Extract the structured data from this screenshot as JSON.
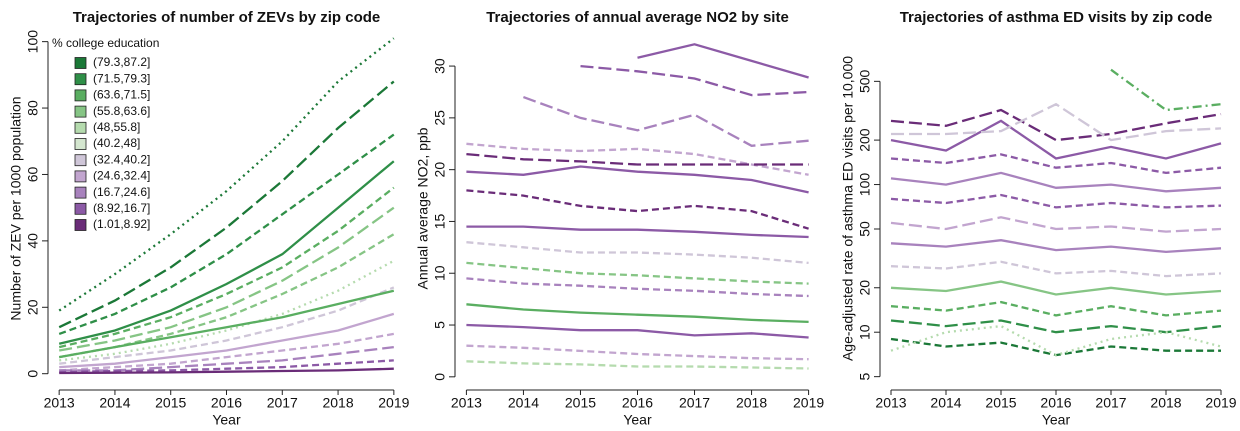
{
  "chart_data": [
    {
      "type": "line",
      "title": "Trajectories of number of ZEVs by zip code",
      "x_label": "Year",
      "y_label": "Number of ZEV per 1000 population",
      "x": [
        2013,
        2014,
        2015,
        2016,
        2017,
        2018,
        2019
      ],
      "xlim": [
        2012.8,
        2019.2
      ],
      "xticks": [
        2013,
        2014,
        2015,
        2016,
        2017,
        2018,
        2019
      ],
      "ylim": [
        -2.5,
        102
      ],
      "yticks": [
        0,
        20,
        40,
        60,
        80,
        100
      ],
      "log_scale": false,
      "legend": {
        "title": "% college education",
        "position": "upper left",
        "items": [
          {
            "label": "(79.3,87.2]",
            "color": "#1b7837"
          },
          {
            "label": "(71.5,79.3]",
            "color": "#2f8f48"
          },
          {
            "label": "(63.6,71.5]",
            "color": "#5aae61"
          },
          {
            "label": "(55.8,63.6]",
            "color": "#86c585"
          },
          {
            "label": "(48,55.8]",
            "color": "#b5dbae"
          },
          {
            "label": "(40.2,48]",
            "color": "#d4e6cf"
          },
          {
            "label": "(32.4,40.2]",
            "color": "#cfc6d8"
          },
          {
            "label": "(24.6,32.4]",
            "color": "#c2a5cf"
          },
          {
            "label": "(16.7,24.6]",
            "color": "#a882bd"
          },
          {
            "label": "(8.92,16.7]",
            "color": "#8c5aa6"
          },
          {
            "label": "(1.01,8.92]",
            "color": "#6a2c78"
          }
        ]
      },
      "series": [
        {
          "color": "#1b7837",
          "dash": "dotted",
          "values": [
            19,
            30,
            42,
            55,
            70,
            88,
            101
          ]
        },
        {
          "color": "#1b7837",
          "dash": "longdash",
          "values": [
            14,
            22,
            32,
            44,
            58,
            74,
            88
          ]
        },
        {
          "color": "#2f8f48",
          "dash": "dashed",
          "values": [
            12,
            18,
            26,
            36,
            48,
            60,
            72
          ]
        },
        {
          "color": "#2f8f48",
          "dash": "solid",
          "values": [
            9,
            13,
            19,
            27,
            36,
            50,
            64
          ]
        },
        {
          "color": "#5aae61",
          "dash": "dashed",
          "values": [
            8,
            12,
            17,
            24,
            32,
            43,
            56
          ]
        },
        {
          "color": "#86c585",
          "dash": "longdash",
          "values": [
            7,
            10,
            14,
            20,
            28,
            38,
            50
          ]
        },
        {
          "color": "#86c585",
          "dash": "dashed",
          "values": [
            5,
            8,
            12,
            17,
            24,
            32,
            42
          ]
        },
        {
          "color": "#b5dbae",
          "dash": "dotted",
          "values": [
            4,
            6,
            9,
            13,
            18,
            25,
            34
          ]
        },
        {
          "color": "#cfc6d8",
          "dash": "dashed",
          "values": [
            3,
            5,
            7,
            10,
            14,
            19,
            26
          ]
        },
        {
          "color": "#5aae61",
          "dash": "solid",
          "values": [
            5,
            8,
            11,
            14,
            17,
            21,
            25
          ]
        },
        {
          "color": "#c2a5cf",
          "dash": "solid",
          "values": [
            2,
            3,
            5,
            7,
            10,
            13,
            18
          ]
        },
        {
          "color": "#c2a5cf",
          "dash": "dashed",
          "values": [
            1,
            2,
            3,
            5,
            7,
            9,
            12
          ]
        },
        {
          "color": "#a882bd",
          "dash": "longdash",
          "values": [
            1,
            1,
            2,
            3,
            4,
            6,
            8
          ]
        },
        {
          "color": "#8c5aa6",
          "dash": "dashed",
          "values": [
            0.5,
            0.8,
            1,
            1.5,
            2,
            3,
            4
          ]
        },
        {
          "color": "#6a2c78",
          "dash": "solid",
          "values": [
            0.2,
            0.3,
            0.4,
            0.6,
            0.8,
            1,
            1.5
          ]
        }
      ]
    },
    {
      "type": "line",
      "title": "Trajectories of annual average NO2 by site",
      "x_label": "Year",
      "y_label": "Annual average NO2, ppb",
      "x": [
        2013,
        2014,
        2015,
        2016,
        2017,
        2018,
        2019
      ],
      "xlim": [
        2012.8,
        2019.2
      ],
      "xticks": [
        2013,
        2014,
        2015,
        2016,
        2017,
        2018,
        2019
      ],
      "ylim": [
        -0.5,
        33
      ],
      "yticks": [
        0,
        5,
        10,
        15,
        20,
        25,
        30
      ],
      "log_scale": false,
      "series": [
        {
          "color": "#8c5aa6",
          "dash": "solid",
          "values": [
            null,
            null,
            null,
            30.8,
            32.1,
            30.5,
            28.9
          ]
        },
        {
          "color": "#8c5aa6",
          "dash": "longdash",
          "values": [
            null,
            null,
            30,
            29.5,
            28.8,
            27.2,
            27.5
          ]
        },
        {
          "color": "#a882bd",
          "dash": "longdash",
          "values": [
            null,
            27,
            25,
            23.8,
            25.3,
            22.3,
            22.8
          ]
        },
        {
          "color": "#c2a5cf",
          "dash": "dashed",
          "values": [
            22.5,
            22,
            21.8,
            22,
            21.5,
            20.5,
            19.5
          ]
        },
        {
          "color": "#6a2c78",
          "dash": "longdash",
          "values": [
            21.5,
            21,
            20.8,
            20.5,
            20.5,
            20.5,
            20.5
          ]
        },
        {
          "color": "#8c5aa6",
          "dash": "solid",
          "values": [
            19.8,
            19.5,
            20.3,
            19.8,
            19.5,
            19,
            17.8
          ]
        },
        {
          "color": "#6a2c78",
          "dash": "dashed",
          "values": [
            18,
            17.5,
            16.5,
            16,
            16.5,
            16,
            14.3
          ]
        },
        {
          "color": "#8c5aa6",
          "dash": "solid",
          "values": [
            14.5,
            14.5,
            14.2,
            14.2,
            14,
            13.7,
            13.5
          ]
        },
        {
          "color": "#cfc6d8",
          "dash": "dashed",
          "values": [
            13,
            12.5,
            12,
            12,
            11.8,
            11.5,
            11
          ]
        },
        {
          "color": "#86c585",
          "dash": "dashed",
          "values": [
            11,
            10.5,
            10,
            9.8,
            9.5,
            9.2,
            9
          ]
        },
        {
          "color": "#a882bd",
          "dash": "dashed",
          "values": [
            9.5,
            9,
            8.8,
            8.5,
            8.3,
            8,
            7.8
          ]
        },
        {
          "color": "#5aae61",
          "dash": "solid",
          "values": [
            7,
            6.5,
            6.2,
            6,
            5.8,
            5.5,
            5.3
          ]
        },
        {
          "color": "#8c5aa6",
          "dash": "solid",
          "values": [
            5,
            4.8,
            4.5,
            4.5,
            4,
            4.2,
            3.8
          ]
        },
        {
          "color": "#c2a5cf",
          "dash": "dashed",
          "values": [
            3,
            2.8,
            2.5,
            2.2,
            2,
            1.8,
            1.7
          ]
        },
        {
          "color": "#b5dbae",
          "dash": "dashed",
          "values": [
            1.5,
            1.3,
            1.2,
            1,
            1,
            0.9,
            0.8
          ]
        }
      ]
    },
    {
      "type": "line",
      "title": "Trajectories of asthma ED visits by zip code",
      "x_label": "Year",
      "y_label": "Age-adjusted rate of asthma ED visits per 10,000",
      "x": [
        2013,
        2014,
        2015,
        2016,
        2017,
        2018,
        2019
      ],
      "xlim": [
        2012.8,
        2019.2
      ],
      "xticks": [
        2013,
        2014,
        2015,
        2016,
        2017,
        2018,
        2019
      ],
      "ylim": [
        4.6,
        1030
      ],
      "yticks": [
        5,
        10,
        20,
        50,
        100,
        200,
        500
      ],
      "log_scale": true,
      "series": [
        {
          "color": "#6a2c78",
          "dash": "longdash",
          "values": [
            270,
            250,
            320,
            200,
            220,
            260,
            300
          ]
        },
        {
          "color": "#8c5aa6",
          "dash": "solid",
          "values": [
            200,
            170,
            270,
            150,
            180,
            150,
            190
          ]
        },
        {
          "color": "#cfc6d8",
          "dash": "longdash",
          "values": [
            220,
            220,
            230,
            350,
            200,
            230,
            240
          ]
        },
        {
          "color": "#5aae61",
          "dash": "dashdot",
          "values": [
            null,
            null,
            null,
            null,
            600,
            320,
            350
          ]
        },
        {
          "color": "#8c5aa6",
          "dash": "dashed",
          "values": [
            150,
            140,
            160,
            130,
            140,
            120,
            130
          ]
        },
        {
          "color": "#a882bd",
          "dash": "solid",
          "values": [
            110,
            100,
            120,
            95,
            100,
            90,
            95
          ]
        },
        {
          "color": "#8c5aa6",
          "dash": "dashed",
          "values": [
            80,
            75,
            85,
            70,
            75,
            70,
            72
          ]
        },
        {
          "color": "#c2a5cf",
          "dash": "longdash",
          "values": [
            55,
            50,
            60,
            50,
            52,
            48,
            50
          ]
        },
        {
          "color": "#a882bd",
          "dash": "solid",
          "values": [
            40,
            38,
            42,
            36,
            38,
            35,
            37
          ]
        },
        {
          "color": "#cfc6d8",
          "dash": "dashed",
          "values": [
            28,
            27,
            30,
            25,
            26,
            24,
            25
          ]
        },
        {
          "color": "#86c585",
          "dash": "solid",
          "values": [
            20,
            19,
            22,
            18,
            20,
            18,
            19
          ]
        },
        {
          "color": "#5aae61",
          "dash": "dashed",
          "values": [
            15,
            14,
            16,
            13,
            15,
            13,
            14
          ]
        },
        {
          "color": "#2f8f48",
          "dash": "longdash",
          "values": [
            12,
            11,
            12,
            10,
            11,
            10,
            11
          ]
        },
        {
          "color": "#1b7837",
          "dash": "dashed",
          "values": [
            9,
            8,
            8.5,
            7,
            8,
            7.5,
            7.5
          ]
        },
        {
          "color": "#b5dbae",
          "dash": "dotted",
          "values": [
            7.5,
            10,
            11,
            7,
            9,
            10,
            8
          ]
        }
      ]
    }
  ]
}
